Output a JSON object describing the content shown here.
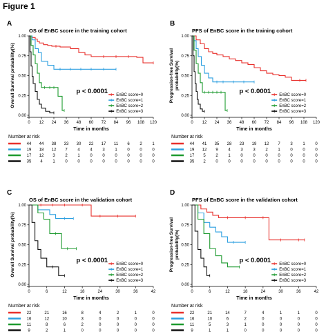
{
  "figure_title": "Figure 1",
  "chart_data": [
    {
      "type": "line",
      "panel_letter": "A",
      "title": "OS of EnBC score in the training cohort",
      "xlabel": "Time in months",
      "ylabel": "Overall Survival probability(%)",
      "xlim": [
        0,
        120
      ],
      "ylim": [
        0,
        1
      ],
      "xticks": [
        0,
        12,
        24,
        36,
        48,
        60,
        72,
        84,
        96,
        108,
        120
      ],
      "yticks": [
        "0.00",
        "0.25",
        "0.50",
        "0.75",
        "1.00"
      ],
      "pvalue": "p < 0.0001",
      "legend": "bottom-right",
      "series": [
        {
          "name": "EnBC score=0",
          "color": "#e8302c",
          "x": [
            0,
            3,
            6,
            8,
            10,
            14,
            18,
            22,
            26,
            30,
            40,
            48,
            54,
            60,
            72,
            84,
            96,
            104,
            110,
            120
          ],
          "y": [
            1,
            0.98,
            0.96,
            0.93,
            0.91,
            0.89,
            0.88,
            0.87,
            0.87,
            0.86,
            0.84,
            0.79,
            0.76,
            0.74,
            0.74,
            0.74,
            0.74,
            0.73,
            0.66,
            0.66
          ]
        },
        {
          "name": "EnBC score=1",
          "color": "#2b9fe0",
          "x": [
            0,
            3,
            6,
            9,
            12,
            18,
            24,
            30,
            40,
            50,
            60,
            72,
            84
          ],
          "y": [
            1,
            0.95,
            0.84,
            0.79,
            0.68,
            0.63,
            0.58,
            0.58,
            0.58,
            0.58,
            0.58,
            0.58,
            0.58
          ]
        },
        {
          "name": "EnBC score=2",
          "color": "#1d9a2f",
          "x": [
            0,
            2,
            4,
            6,
            8,
            10,
            12,
            15,
            20,
            24,
            28,
            32,
            34
          ],
          "y": [
            1,
            0.88,
            0.76,
            0.65,
            0.53,
            0.41,
            0.35,
            0.35,
            0.35,
            0.35,
            0.24,
            0.06,
            0.06
          ]
        },
        {
          "name": "EnBC score=3",
          "color": "#111111",
          "x": [
            0,
            1,
            2,
            3,
            4,
            6,
            8,
            10,
            12,
            16,
            20,
            24
          ],
          "y": [
            1,
            0.8,
            0.62,
            0.49,
            0.4,
            0.3,
            0.2,
            0.14,
            0.09,
            0.05,
            0.03,
            0.03
          ]
        }
      ],
      "risk_table": {
        "title": "Number at risk",
        "rows": [
          [
            "44",
            "44",
            "38",
            "33",
            "30",
            "22",
            "17",
            "11",
            "6",
            "2",
            "1"
          ],
          [
            "19",
            "18",
            "12",
            "7",
            "4",
            "4",
            "3",
            "1",
            "0",
            "0",
            "0"
          ],
          [
            "17",
            "12",
            "3",
            "2",
            "1",
            "0",
            "0",
            "0",
            "0",
            "0",
            "0"
          ],
          [
            "35",
            "4",
            "1",
            "0",
            "0",
            "0",
            "0",
            "0",
            "0",
            "0",
            "0"
          ]
        ]
      }
    },
    {
      "type": "line",
      "panel_letter": "B",
      "title": "PFS of EnBC score in the training cohort",
      "xlabel": "Time in months",
      "ylabel": "Progression-free Survival probability(%)",
      "xlim": [
        0,
        120
      ],
      "ylim": [
        0,
        1
      ],
      "xticks": [
        0,
        12,
        24,
        36,
        48,
        60,
        72,
        84,
        96,
        108,
        120
      ],
      "yticks": [
        "0.00",
        "0.25",
        "0.50",
        "0.75",
        "1.00"
      ],
      "pvalue": "p < 0.0001",
      "legend": "bottom-right",
      "series": [
        {
          "name": "EnBC score=0",
          "color": "#e8302c",
          "x": [
            0,
            4,
            8,
            12,
            16,
            20,
            24,
            30,
            36,
            42,
            48,
            54,
            60,
            66,
            72,
            78,
            84,
            90,
            96,
            104,
            110
          ],
          "y": [
            1,
            0.95,
            0.9,
            0.84,
            0.8,
            0.78,
            0.76,
            0.74,
            0.71,
            0.69,
            0.66,
            0.64,
            0.6,
            0.56,
            0.53,
            0.51,
            0.5,
            0.48,
            0.44,
            0.44,
            0.44
          ]
        },
        {
          "name": "EnBC score=1",
          "color": "#2b9fe0",
          "x": [
            0,
            2,
            4,
            6,
            9,
            12,
            16,
            20,
            24,
            30,
            40,
            50,
            60
          ],
          "y": [
            1,
            0.94,
            0.84,
            0.74,
            0.63,
            0.53,
            0.47,
            0.42,
            0.42,
            0.42,
            0.42,
            0.42,
            0.42
          ]
        },
        {
          "name": "EnBC score=2",
          "color": "#1d9a2f",
          "x": [
            0,
            2,
            4,
            6,
            8,
            10,
            12,
            16,
            20,
            24,
            28,
            32,
            34
          ],
          "y": [
            1,
            0.82,
            0.65,
            0.53,
            0.41,
            0.29,
            0.29,
            0.29,
            0.29,
            0.29,
            0.29,
            0.06,
            0.06
          ]
        },
        {
          "name": "EnBC score=3",
          "color": "#111111",
          "x": [
            0,
            1,
            2,
            3,
            4,
            5,
            6,
            8,
            10,
            12
          ],
          "y": [
            1,
            0.75,
            0.55,
            0.4,
            0.3,
            0.2,
            0.14,
            0.08,
            0.05,
            0.05
          ]
        }
      ],
      "risk_table": {
        "title": "Number at risk",
        "rows": [
          [
            "44",
            "41",
            "35",
            "28",
            "23",
            "19",
            "12",
            "7",
            "3",
            "1",
            "0"
          ],
          [
            "19",
            "12",
            "9",
            "4",
            "3",
            "3",
            "2",
            "1",
            "0",
            "0",
            "0"
          ],
          [
            "17",
            "5",
            "2",
            "1",
            "0",
            "0",
            "0",
            "0",
            "0",
            "0",
            "0"
          ],
          [
            "35",
            "2",
            "0",
            "0",
            "0",
            "0",
            "0",
            "0",
            "0",
            "0",
            "0"
          ]
        ]
      }
    },
    {
      "type": "line",
      "panel_letter": "C",
      "title": "OS of EnBC score in the validation cohort",
      "xlabel": "Time in months",
      "ylabel": "Overall Survival probability(%)",
      "xlim": [
        0,
        42
      ],
      "ylim": [
        0,
        1
      ],
      "xticks": [
        0,
        6,
        12,
        18,
        24,
        30,
        36,
        42
      ],
      "yticks": [
        "0.00",
        "0.25",
        "0.50",
        "0.75",
        "1.00"
      ],
      "pvalue": "p < 0.0001",
      "legend": "bottom-right",
      "series": [
        {
          "name": "EnBC score=0",
          "color": "#e8302c",
          "x": [
            0,
            4,
            8,
            12,
            18,
            21,
            24,
            30,
            36
          ],
          "y": [
            1,
            1,
            1,
            1,
            1,
            0.86,
            0.86,
            0.86,
            0.86
          ]
        },
        {
          "name": "EnBC score=1",
          "color": "#2b9fe0",
          "x": [
            0,
            3,
            7,
            9,
            12,
            15
          ],
          "y": [
            1,
            0.94,
            0.88,
            0.83,
            0.83,
            0.83
          ]
        },
        {
          "name": "EnBC score=2",
          "color": "#1d9a2f",
          "x": [
            0,
            3,
            5,
            7,
            9,
            11,
            13,
            16
          ],
          "y": [
            1,
            0.9,
            0.82,
            0.64,
            0.64,
            0.45,
            0.45,
            0.45
          ]
        },
        {
          "name": "EnBC score=3",
          "color": "#111111",
          "x": [
            0,
            1,
            2,
            3,
            4,
            6,
            8,
            10,
            12
          ],
          "y": [
            1,
            0.78,
            0.55,
            0.44,
            0.33,
            0.22,
            0.22,
            0.11,
            0.11
          ]
        }
      ],
      "risk_table": {
        "title": "Number at risk",
        "rows": [
          [
            "22",
            "21",
            "16",
            "8",
            "4",
            "2",
            "1",
            "0"
          ],
          [
            "16",
            "12",
            "10",
            "3",
            "0",
            "0",
            "0",
            "0"
          ],
          [
            "11",
            "8",
            "6",
            "2",
            "0",
            "0",
            "0",
            "0"
          ],
          [
            "9",
            "2",
            "1",
            "0",
            "0",
            "0",
            "0",
            "0"
          ]
        ]
      }
    },
    {
      "type": "line",
      "panel_letter": "D",
      "title": "PFS of EnBC score in the validation cohort",
      "xlabel": "Time in months",
      "ylabel": "Progression-free Survival probability(%)",
      "xlim": [
        0,
        42
      ],
      "ylim": [
        0,
        1
      ],
      "xticks": [
        0,
        6,
        12,
        18,
        24,
        30,
        36,
        42
      ],
      "yticks": [
        "0.00",
        "0.25",
        "0.50",
        "0.75",
        "1.00"
      ],
      "pvalue": "p < 0.0001",
      "legend": "bottom-right",
      "series": [
        {
          "name": "EnBC score=0",
          "color": "#e8302c",
          "x": [
            0,
            3,
            5,
            7,
            9,
            12,
            18,
            24,
            26,
            30,
            36,
            38
          ],
          "y": [
            1,
            0.95,
            0.91,
            0.87,
            0.84,
            0.84,
            0.84,
            0.84,
            0.56,
            0.56,
            0.56,
            0.56
          ]
        },
        {
          "name": "EnBC score=1",
          "color": "#2b9fe0",
          "x": [
            0,
            2,
            4,
            6,
            8,
            10,
            12,
            14,
            18
          ],
          "y": [
            1,
            0.9,
            0.78,
            0.72,
            0.66,
            0.6,
            0.53,
            0.53,
            0.53
          ]
        },
        {
          "name": "EnBC score=2",
          "color": "#1d9a2f",
          "x": [
            0,
            2,
            4,
            6,
            8,
            10,
            12,
            16
          ],
          "y": [
            1,
            0.82,
            0.64,
            0.45,
            0.36,
            0.27,
            0.22,
            0.22
          ]
        },
        {
          "name": "EnBC score=3",
          "color": "#111111",
          "x": [
            0,
            1,
            2,
            3,
            4,
            5,
            6
          ],
          "y": [
            1,
            0.67,
            0.44,
            0.33,
            0.22,
            0.11,
            0.11
          ]
        }
      ],
      "risk_table": {
        "title": "Number at risk",
        "rows": [
          [
            "22",
            "21",
            "14",
            "7",
            "4",
            "1",
            "1",
            "0"
          ],
          [
            "16",
            "10",
            "6",
            "2",
            "0",
            "0",
            "0",
            "0"
          ],
          [
            "11",
            "5",
            "3",
            "1",
            "0",
            "0",
            "0",
            "0"
          ],
          [
            "9",
            "1",
            "1",
            "0",
            "0",
            "0",
            "0",
            "0"
          ]
        ]
      }
    }
  ]
}
